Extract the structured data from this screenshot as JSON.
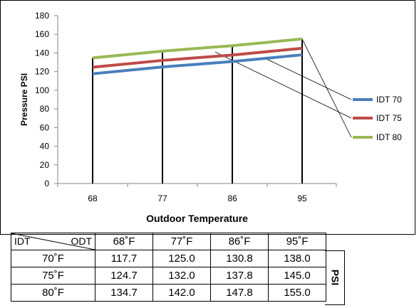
{
  "chart_data": {
    "type": "line",
    "xlabel": "Outdoor Temperature",
    "ylabel": "Pressure PSI",
    "categories": [
      "68",
      "77",
      "86",
      "95"
    ],
    "ylim": [
      0,
      180
    ],
    "yticks": [
      0,
      20,
      40,
      60,
      80,
      100,
      120,
      140,
      160,
      180
    ],
    "grid": false,
    "legend_position": "right",
    "series": [
      {
        "name": "IDT 70",
        "values": [
          117.7,
          125.0,
          130.8,
          138.0
        ],
        "color": "#4a7ebb"
      },
      {
        "name": "IDT 75",
        "values": [
          124.7,
          132.0,
          137.8,
          145.0
        ],
        "color": "#be4b48"
      },
      {
        "name": "IDT 80",
        "values": [
          134.7,
          142.0,
          147.8,
          155.0
        ],
        "color": "#98b954"
      }
    ]
  },
  "table": {
    "corner_idt": "IDT",
    "corner_odt": "ODT",
    "col_headers": [
      "68˚F",
      "77˚F",
      "86˚F",
      "95˚F"
    ],
    "rows": [
      {
        "label": "70˚F",
        "values": [
          "117.7",
          "125.0",
          "130.8",
          "138.0"
        ]
      },
      {
        "label": "75˚F",
        "values": [
          "124.7",
          "132.0",
          "137.8",
          "145.0"
        ]
      },
      {
        "label": "80˚F",
        "values": [
          "134.7",
          "142.0",
          "147.8",
          "155.0"
        ]
      }
    ],
    "side_label": "PSI"
  }
}
